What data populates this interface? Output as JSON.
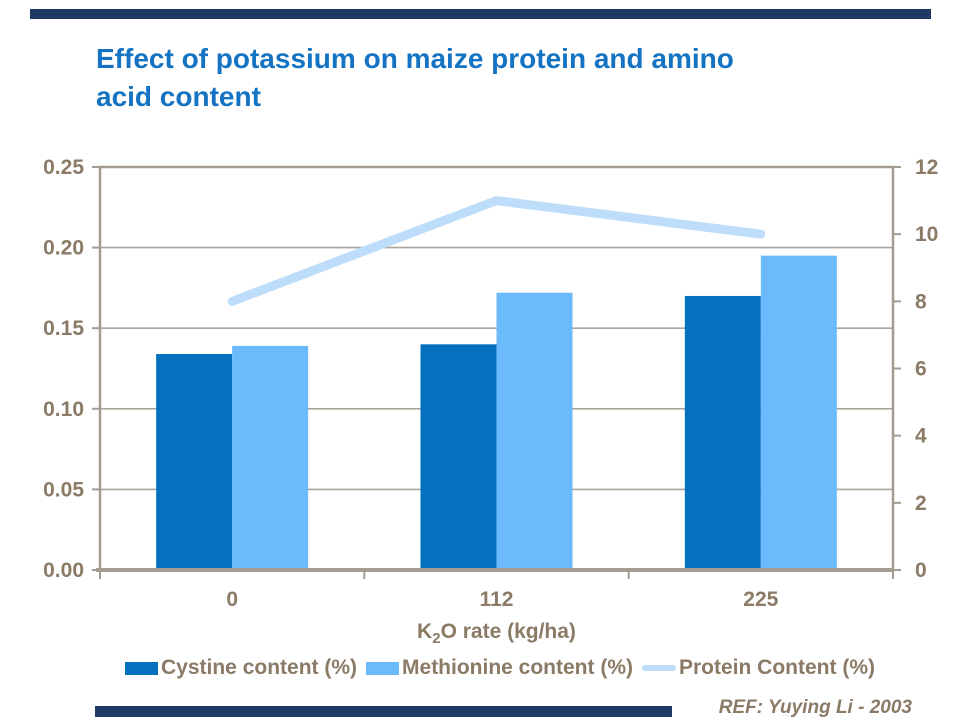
{
  "slide": {
    "title": "Effect of potassium on maize protein and amino acid content",
    "title_line1": "Effect of potassium on maize protein and amino",
    "title_line2": "acid content",
    "reference": "REF: Yuying Li - 2003",
    "colors": {
      "title_text": "#1473C2",
      "accent_bar": "#1F3864",
      "chart_text": "#8A7A66"
    }
  },
  "chart_data": {
    "type": "bar",
    "subtype": "combo-bar-line-dual-axis",
    "categories": [
      "0",
      "112",
      "225"
    ],
    "series": [
      {
        "name": "Cystine content (%)",
        "type": "bar",
        "axis": "left",
        "color": "#0471BF",
        "values": [
          0.134,
          0.14,
          0.17
        ]
      },
      {
        "name": "Methionine content (%)",
        "type": "bar",
        "axis": "left",
        "color": "#6BBAFC",
        "values": [
          0.139,
          0.172,
          0.195
        ]
      },
      {
        "name": "Protein Content (%)",
        "type": "line",
        "axis": "right",
        "color": "#BDDDFA",
        "values": [
          8,
          11,
          10
        ]
      }
    ],
    "xlabel": "K2O rate (kg/ha)",
    "xlabel_parts": {
      "base": "K",
      "sub": "2",
      "rest": "O rate (kg/ha)"
    },
    "left_axis": {
      "min": 0,
      "max": 0.25,
      "step": 0.05,
      "tick_labels": [
        "0.00",
        "0.05",
        "0.10",
        "0.15",
        "0.20",
        "0.25"
      ]
    },
    "right_axis": {
      "min": 0,
      "max": 12,
      "step": 2,
      "tick_labels": [
        "0",
        "2",
        "4",
        "6",
        "8",
        "10",
        "12"
      ]
    },
    "grid": "horizontal-left-axis-steps",
    "legend_position": "bottom",
    "colors": {
      "gridline": "#A9A399",
      "axis": "#A39C90",
      "text": "#8A7A66"
    }
  }
}
